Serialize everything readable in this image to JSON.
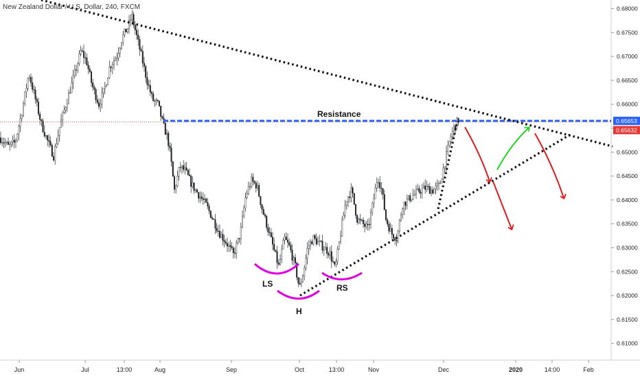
{
  "chart_data": {
    "type": "candlestick",
    "title": "New Zealand Dollar / U.S. Dollar, 240, FXCM",
    "ylim": [
      0.6065,
      0.6818
    ],
    "y_ticks": [
      "0.68000",
      "0.67500",
      "0.67000",
      "0.66500",
      "0.66000",
      "0.65500",
      "0.65000",
      "0.64500",
      "0.64000",
      "0.63500",
      "0.63000",
      "0.62500",
      "0.62000",
      "0.61500",
      "0.61000"
    ],
    "x_ticks": [
      {
        "label": "Jun",
        "bold": false
      },
      {
        "label": "Jul",
        "bold": false
      },
      {
        "label": "13:00",
        "bold": false
      },
      {
        "label": "Aug",
        "bold": false
      },
      {
        "label": "Sep",
        "bold": false
      },
      {
        "label": "Oct",
        "bold": false
      },
      {
        "label": "13:00",
        "bold": false
      },
      {
        "label": "Nov",
        "bold": false
      },
      {
        "label": "Dec",
        "bold": false
      },
      {
        "label": "2020",
        "bold": true
      },
      {
        "label": "14:00",
        "bold": false
      },
      {
        "label": "Feb",
        "bold": false
      }
    ],
    "price_path": [
      [
        0,
        0.653
      ],
      [
        12,
        0.6512
      ],
      [
        22,
        0.652
      ],
      [
        32,
        0.6585
      ],
      [
        42,
        0.6665
      ],
      [
        50,
        0.662
      ],
      [
        60,
        0.656
      ],
      [
        70,
        0.652
      ],
      [
        78,
        0.6492
      ],
      [
        88,
        0.656
      ],
      [
        98,
        0.661
      ],
      [
        108,
        0.666
      ],
      [
        118,
        0.6712
      ],
      [
        126,
        0.669
      ],
      [
        134,
        0.664
      ],
      [
        144,
        0.66
      ],
      [
        152,
        0.663
      ],
      [
        160,
        0.668
      ],
      [
        170,
        0.67
      ],
      [
        178,
        0.674
      ],
      [
        186,
        0.676
      ],
      [
        192,
        0.6785
      ],
      [
        198,
        0.6748
      ],
      [
        206,
        0.67
      ],
      [
        214,
        0.665
      ],
      [
        222,
        0.661
      ],
      [
        230,
        0.66
      ],
      [
        238,
        0.6555
      ],
      [
        244,
        0.653
      ],
      [
        248,
        0.6495
      ],
      [
        254,
        0.642
      ],
      [
        262,
        0.647
      ],
      [
        270,
        0.646
      ],
      [
        280,
        0.643
      ],
      [
        290,
        0.641
      ],
      [
        300,
        0.639
      ],
      [
        310,
        0.636
      ],
      [
        320,
        0.633
      ],
      [
        330,
        0.631
      ],
      [
        340,
        0.6285
      ],
      [
        350,
        0.633
      ],
      [
        358,
        0.641
      ],
      [
        366,
        0.644
      ],
      [
        374,
        0.643
      ],
      [
        382,
        0.638
      ],
      [
        390,
        0.634
      ],
      [
        398,
        0.63
      ],
      [
        406,
        0.626
      ],
      [
        414,
        0.632
      ],
      [
        422,
        0.63
      ],
      [
        430,
        0.626
      ],
      [
        436,
        0.6215
      ],
      [
        442,
        0.625
      ],
      [
        448,
        0.63
      ],
      [
        456,
        0.632
      ],
      [
        464,
        0.631
      ],
      [
        472,
        0.63
      ],
      [
        480,
        0.629
      ],
      [
        488,
        0.6255
      ],
      [
        496,
        0.633
      ],
      [
        504,
        0.64
      ],
      [
        512,
        0.642
      ],
      [
        520,
        0.636
      ],
      [
        528,
        0.635
      ],
      [
        536,
        0.634
      ],
      [
        544,
        0.64
      ],
      [
        550,
        0.645
      ],
      [
        556,
        0.642
      ],
      [
        562,
        0.636
      ],
      [
        570,
        0.633
      ],
      [
        578,
        0.632
      ],
      [
        586,
        0.639
      ],
      [
        594,
        0.64
      ],
      [
        602,
        0.641
      ],
      [
        612,
        0.642
      ],
      [
        620,
        0.6425
      ],
      [
        630,
        0.642
      ],
      [
        640,
        0.643
      ],
      [
        648,
        0.648
      ],
      [
        656,
        0.653
      ],
      [
        662,
        0.6555
      ],
      [
        668,
        0.6568
      ]
    ],
    "up_color": "#26a69a",
    "down_color": "#ef5350",
    "candle_color": "#1f2327",
    "current_price": {
      "value": 0.65653,
      "label": "0.65653",
      "color": "#2962ff"
    },
    "previous_price": {
      "value": 0.65632,
      "label": "0.65632",
      "color": "#e53935"
    },
    "annotations": {
      "resistance": {
        "text": "Resistance",
        "y": 0.6565,
        "line_color": "#2962ff"
      },
      "left_shoulder": {
        "text": "LS"
      },
      "head": {
        "text": "H"
      },
      "right_shoulder": {
        "text": "RS"
      },
      "shoulder_color": "#e000e0",
      "arrow_red": "#e31a1c",
      "arrow_green": "#22d322",
      "trendline_color": "#111111"
    }
  }
}
